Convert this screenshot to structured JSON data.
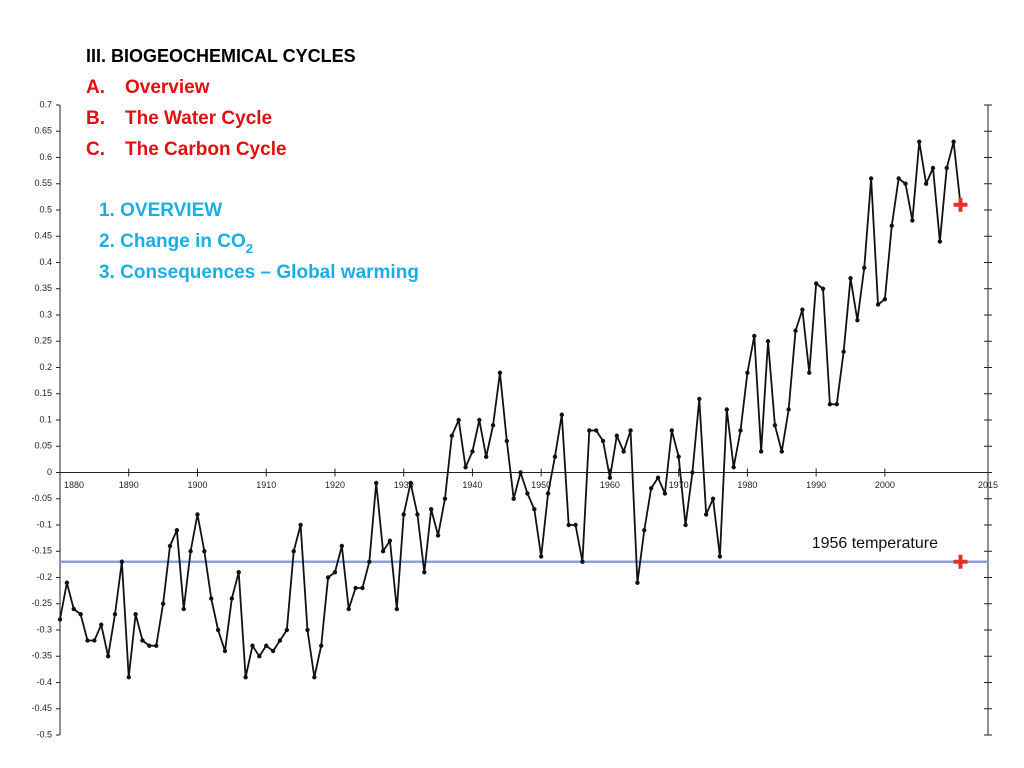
{
  "slide": {
    "heading": "III. BIOGEOCHEMICAL CYCLES",
    "outline": [
      {
        "marker": "A.",
        "text": "Overview"
      },
      {
        "marker": "B.",
        "text": "The Water Cycle"
      },
      {
        "marker": "C.",
        "text": "The Carbon Cycle"
      }
    ],
    "items": [
      {
        "text": "1. OVERVIEW"
      },
      {
        "text": "2. Change in CO",
        "sub": "2"
      },
      {
        "text": "3. Consequences – Global warming"
      }
    ]
  },
  "chart_data": {
    "type": "line",
    "x": [
      1880,
      1881,
      1882,
      1883,
      1884,
      1885,
      1886,
      1887,
      1888,
      1889,
      1890,
      1891,
      1892,
      1893,
      1894,
      1895,
      1896,
      1897,
      1898,
      1899,
      1900,
      1901,
      1902,
      1903,
      1904,
      1905,
      1906,
      1907,
      1908,
      1909,
      1910,
      1911,
      1912,
      1913,
      1914,
      1915,
      1916,
      1917,
      1918,
      1919,
      1920,
      1921,
      1922,
      1923,
      1924,
      1925,
      1926,
      1927,
      1928,
      1929,
      1930,
      1931,
      1932,
      1933,
      1934,
      1935,
      1936,
      1937,
      1938,
      1939,
      1940,
      1941,
      1942,
      1943,
      1944,
      1945,
      1946,
      1947,
      1948,
      1949,
      1950,
      1951,
      1952,
      1953,
      1954,
      1955,
      1956,
      1957,
      1958,
      1959,
      1960,
      1961,
      1962,
      1963,
      1964,
      1965,
      1966,
      1967,
      1968,
      1969,
      1970,
      1971,
      1972,
      1973,
      1974,
      1975,
      1976,
      1977,
      1978,
      1979,
      1980,
      1981,
      1982,
      1983,
      1984,
      1985,
      1986,
      1987,
      1988,
      1989,
      1990,
      1991,
      1992,
      1993,
      1994,
      1995,
      1996,
      1997,
      1998,
      1999,
      2000,
      2001,
      2002,
      2003,
      2004,
      2005,
      2006,
      2007,
      2008,
      2009,
      2010,
      2011
    ],
    "series": [
      {
        "color": "#111111",
        "values": [
          -0.28,
          -0.21,
          -0.26,
          -0.27,
          -0.32,
          -0.32,
          -0.29,
          -0.35,
          -0.27,
          -0.17,
          -0.39,
          -0.27,
          -0.32,
          -0.33,
          -0.33,
          -0.25,
          -0.14,
          -0.11,
          -0.26,
          -0.15,
          -0.08,
          -0.15,
          -0.24,
          -0.3,
          -0.34,
          -0.24,
          -0.19,
          -0.39,
          -0.33,
          -0.35,
          -0.33,
          -0.34,
          -0.32,
          -0.3,
          -0.15,
          -0.1,
          -0.3,
          -0.39,
          -0.33,
          -0.2,
          -0.19,
          -0.14,
          -0.26,
          -0.22,
          -0.22,
          -0.17,
          -0.02,
          -0.15,
          -0.13,
          -0.26,
          -0.08,
          -0.02,
          -0.08,
          -0.19,
          -0.07,
          -0.12,
          -0.05,
          0.07,
          0.1,
          0.01,
          0.04,
          0.1,
          0.03,
          0.09,
          0.19,
          0.06,
          -0.05,
          0,
          -0.04,
          -0.07,
          -0.16,
          -0.04,
          0.03,
          0.11,
          -0.1,
          -0.1,
          -0.17,
          0.08,
          0.08,
          0.06,
          -0.01,
          0.07,
          0.04,
          0.08,
          -0.21,
          -0.11,
          -0.03,
          -0.01,
          -0.04,
          0.08,
          0.03,
          -0.1,
          0,
          0.14,
          -0.08,
          -0.05,
          -0.16,
          0.12,
          0.01,
          0.08,
          0.19,
          0.26,
          0.04,
          0.25,
          0.09,
          0.04,
          0.12,
          0.27,
          0.31,
          0.19,
          0.36,
          0.35,
          0.13,
          0.13,
          0.23,
          0.37,
          0.29,
          0.39,
          0.56,
          0.32,
          0.33,
          0.47,
          0.56,
          0.55,
          0.48,
          0.63,
          0.55,
          0.58,
          0.44,
          0.58,
          0.63,
          0.51
        ]
      }
    ],
    "highlight": {
      "x": [
        2011,
        2011
      ],
      "values": [
        0.51,
        -0.17
      ],
      "color": "#e8302a"
    },
    "reference_line": {
      "value": -0.17,
      "label": "1956 temperature",
      "color": "#8d9fe0"
    },
    "xlim": [
      1880,
      2015
    ],
    "xticks": [
      1880,
      1890,
      1900,
      1910,
      1920,
      1930,
      1940,
      1950,
      1960,
      1970,
      1980,
      1990,
      2000,
      2015
    ],
    "ylim": [
      -0.5,
      0.7
    ],
    "yticks": [
      0.7,
      0.65,
      0.6,
      0.55,
      0.5,
      0.45,
      0.4,
      0.35,
      0.3,
      0.25,
      0.2,
      0.15,
      0.1,
      0.05,
      0,
      -0.05,
      -0.1,
      -0.15,
      -0.2,
      -0.25,
      -0.3,
      -0.35,
      -0.4,
      -0.45,
      -0.5
    ]
  }
}
